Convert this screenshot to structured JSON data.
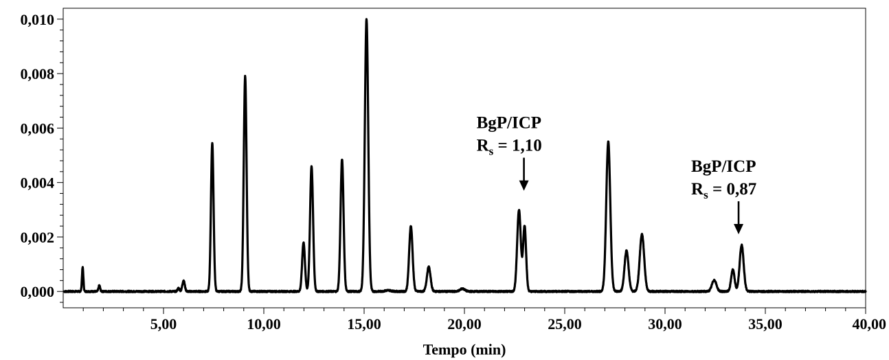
{
  "chart_data": {
    "type": "line",
    "title": "",
    "xlabel": "Tempo (min)",
    "ylabel": "",
    "xlim": [
      0,
      40
    ],
    "ylim": [
      -0.0006,
      0.0104
    ],
    "x_ticks": [
      5,
      10,
      15,
      20,
      25,
      30,
      35,
      40
    ],
    "x_tick_labels": [
      "5,00",
      "10,00",
      "15,00",
      "20,00",
      "25,00",
      "30,00",
      "35,00",
      "40,00"
    ],
    "y_ticks": [
      0,
      0.002,
      0.004,
      0.006,
      0.008,
      0.01
    ],
    "y_tick_labels": [
      "0,000",
      "0,002",
      "0,004",
      "0,006",
      "0,008",
      "0,010"
    ],
    "grid": false,
    "line_color": "#000000",
    "baseline": 0.0,
    "peaks": [
      {
        "t": 0.97,
        "h": 0.00088,
        "w": 0.035
      },
      {
        "t": 1.8,
        "h": 0.00022,
        "w": 0.04
      },
      {
        "t": 5.75,
        "h": 0.00012,
        "w": 0.05
      },
      {
        "t": 6.0,
        "h": 0.0004,
        "w": 0.06
      },
      {
        "t": 7.43,
        "h": 0.00545,
        "w": 0.065
      },
      {
        "t": 9.07,
        "h": 0.0079,
        "w": 0.07
      },
      {
        "t": 11.98,
        "h": 0.0018,
        "w": 0.07
      },
      {
        "t": 12.38,
        "h": 0.0046,
        "w": 0.075
      },
      {
        "t": 13.9,
        "h": 0.00485,
        "w": 0.075
      },
      {
        "t": 15.12,
        "h": 0.01,
        "w": 0.085
      },
      {
        "t": 16.2,
        "h": 4e-05,
        "w": 0.15
      },
      {
        "t": 17.33,
        "h": 0.0024,
        "w": 0.085
      },
      {
        "t": 18.22,
        "h": 0.0009,
        "w": 0.09
      },
      {
        "t": 19.9,
        "h": 0.0001,
        "w": 0.12
      },
      {
        "t": 22.72,
        "h": 0.003,
        "w": 0.09
      },
      {
        "t": 23.0,
        "h": 0.0024,
        "w": 0.075
      },
      {
        "t": 27.17,
        "h": 0.0055,
        "w": 0.1
      },
      {
        "t": 28.08,
        "h": 0.0015,
        "w": 0.1
      },
      {
        "t": 28.85,
        "h": 0.0021,
        "w": 0.11
      },
      {
        "t": 32.45,
        "h": 0.00042,
        "w": 0.11
      },
      {
        "t": 33.38,
        "h": 0.0008,
        "w": 0.085
      },
      {
        "t": 33.82,
        "h": 0.0017,
        "w": 0.1
      }
    ],
    "annotations": [
      {
        "line1": "BgP/ICP",
        "r_main": "R",
        "r_sub": "s",
        "r_value": " = 1,10",
        "target_t": 23.0,
        "target_y": 0.0037
      },
      {
        "line1": "BgP/ICP",
        "r_main": "R",
        "r_sub": "s",
        "r_value": " = 0,87",
        "target_t": 33.7,
        "target_y": 0.0021
      }
    ]
  }
}
